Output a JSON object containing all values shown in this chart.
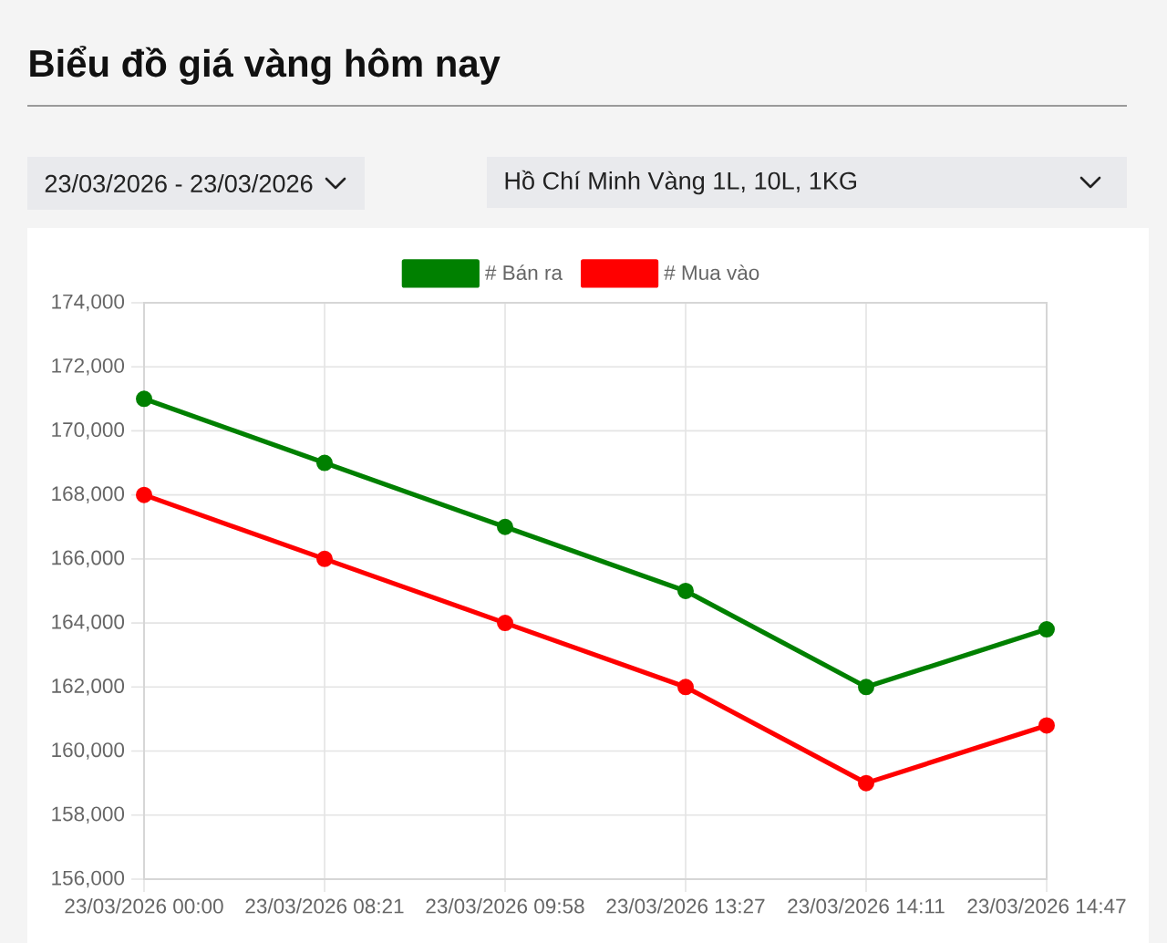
{
  "chart_data": {
    "type": "line",
    "title": "Biểu đồ giá vàng hôm nay",
    "annotations": [
      "23/03/2026 - 23/03/2026",
      "Hồ Chí Minh Vàng 1L, 10L, 1KG"
    ],
    "categories": [
      "23/03/2026 00:00",
      "23/03/2026 08:21",
      "23/03/2026 09:58",
      "23/03/2026 13:27",
      "23/03/2026 14:11",
      "23/03/2026 14:47"
    ],
    "series": [
      {
        "name": "# Bán ra",
        "color": "#008000",
        "values": [
          171000,
          169000,
          167000,
          165000,
          162000,
          163800
        ]
      },
      {
        "name": "# Mua vào",
        "color": "#ff0000",
        "values": [
          168000,
          166000,
          164000,
          162000,
          159000,
          160800
        ]
      }
    ],
    "ylim": [
      156000,
      174000
    ],
    "yticks": [
      {
        "value": 156000,
        "label": "156,000"
      },
      {
        "value": 158000,
        "label": "158,000"
      },
      {
        "value": 160000,
        "label": "160,000"
      },
      {
        "value": 162000,
        "label": "162,000"
      },
      {
        "value": 164000,
        "label": "164,000"
      },
      {
        "value": 166000,
        "label": "166,000"
      },
      {
        "value": 168000,
        "label": "168,000"
      },
      {
        "value": 170000,
        "label": "170,000"
      },
      {
        "value": 172000,
        "label": "172,000"
      },
      {
        "value": 174000,
        "label": "174,000"
      }
    ],
    "grid": true,
    "legend": "top",
    "marker": "circle",
    "line_style": "solid"
  }
}
